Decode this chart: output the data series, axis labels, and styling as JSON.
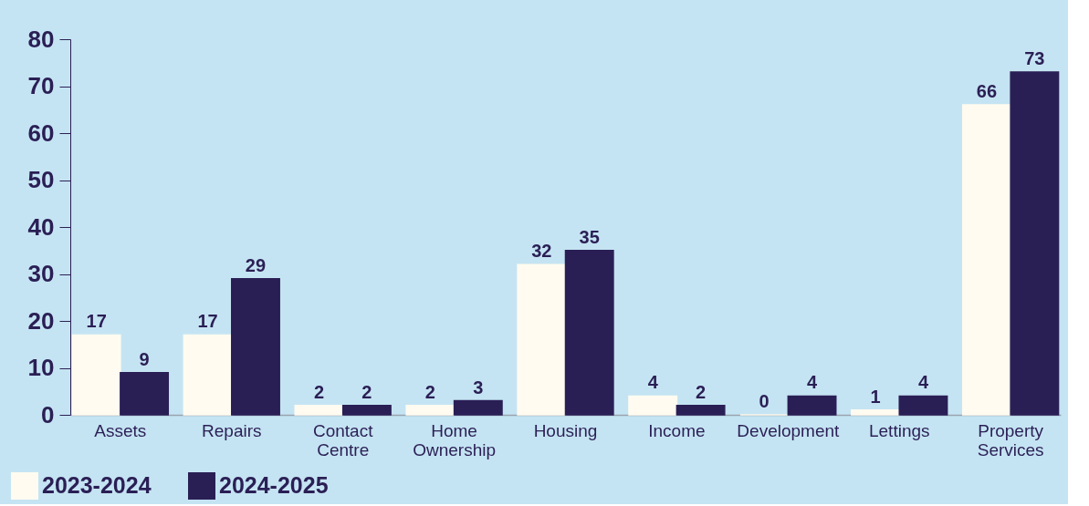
{
  "chart_data": {
    "type": "bar",
    "categories": [
      "Assets",
      "Repairs",
      "Contact Centre",
      "Home Ownership",
      "Housing",
      "Income",
      "Development",
      "Lettings",
      "Property Services"
    ],
    "series": [
      {
        "name": "2023-2024",
        "color": "#fffbf0",
        "values": [
          17,
          17,
          2,
          2,
          32,
          4,
          0,
          1,
          66
        ]
      },
      {
        "name": "2024-2025",
        "color": "#2a1f55",
        "values": [
          9,
          29,
          2,
          3,
          35,
          2,
          4,
          4,
          73
        ]
      }
    ],
    "ylim": [
      0,
      80
    ],
    "yticks": [
      0,
      10,
      20,
      30,
      40,
      50,
      60,
      70,
      80
    ],
    "grid": false,
    "legend": "bottom left",
    "data_labels": true
  }
}
